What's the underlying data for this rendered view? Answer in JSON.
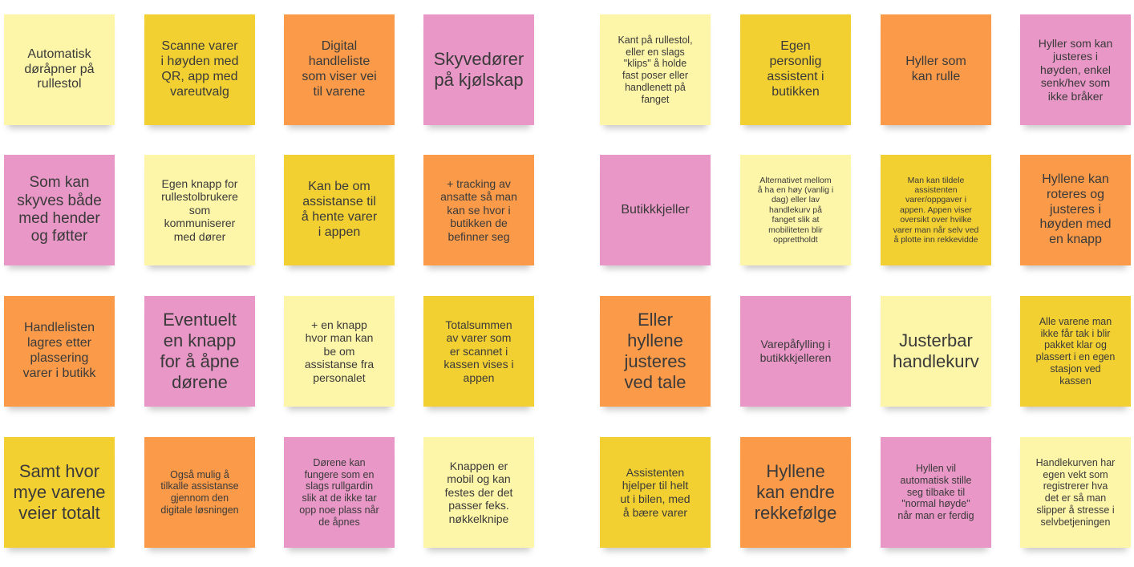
{
  "colors": {
    "light_yellow": "#fdf5a8",
    "yellow": "#f3d032",
    "orange": "#fb9b4a",
    "pink": "#e897c6"
  },
  "notes": [
    {
      "text": "Automatisk\ndøråpner på\nrullestol",
      "color": "light_yellow"
    },
    {
      "text": "Scanne varer\ni høyden med\nQR, app med\nvareutvalg",
      "color": "yellow"
    },
    {
      "text": "Digital\nhandleliste\nsom viser vei\ntil varene",
      "color": "orange"
    },
    {
      "text": "Skyvedører\npå kjølskap",
      "color": "pink"
    },
    {
      "text": "Kant på rullestol,\neller en slags\n\"klips\" å holde\nfast poser eller\nhandlenett på\nfanget",
      "color": "light_yellow"
    },
    {
      "text": "Egen\npersonlig\nassistent i\nbutikken",
      "color": "yellow"
    },
    {
      "text": "Hyller som\nkan rulle",
      "color": "orange"
    },
    {
      "text": "Hyller som kan\njusteres i\nhøyden, enkel\nsenk/hev som\nikke bråker",
      "color": "pink"
    },
    {
      "text": "Som kan\nskyves både\nmed hender\nog føtter",
      "color": "pink"
    },
    {
      "text": "Egen knapp for\nrullestolbrukere\nsom\nkommuniserer\nmed dører",
      "color": "light_yellow"
    },
    {
      "text": "Kan be om\nassistanse til\nå hente varer\ni appen",
      "color": "yellow"
    },
    {
      "text": "+ tracking av\nansatte så man\nkan se hvor i\nbutikken de\nbefinner seg",
      "color": "orange"
    },
    {
      "text": "Butikkkjeller",
      "color": "pink"
    },
    {
      "text": "Alternativet mellom\nå ha en høy (vanlig i\ndag) eller lav\nhandlekurv på\nfanget slik at\nmobiliteten blir\nopprettholdt",
      "color": "light_yellow"
    },
    {
      "text": "Man kan tildele\nassistenten\nvarer/oppgaver i\nappen. Appen viser\noversikt over hvilke\nvarer man når selv ved\nå plotte inn rekkevidde",
      "color": "yellow"
    },
    {
      "text": "Hyllene kan\nroteres og\njusteres i\nhøyden med\nen knapp",
      "color": "orange"
    },
    {
      "text": "Handlelisten\nlagres etter\nplassering\nvarer  i butikk",
      "color": "orange"
    },
    {
      "text": "Eventuelt\nen knapp\nfor å åpne\ndørene",
      "color": "pink"
    },
    {
      "text": "+ en knapp\nhvor man kan\nbe om\nassistanse fra\npersonalet",
      "color": "light_yellow"
    },
    {
      "text": "Totalsummen\nav varer som\ner scannet i\nkassen vises i\nappen",
      "color": "yellow"
    },
    {
      "text": "Eller\nhyllene\njusteres\nved tale",
      "color": "orange"
    },
    {
      "text": "Varepåfylling i\nbutikkkjelleren",
      "color": "pink"
    },
    {
      "text": "Justerbar\nhandlekurv",
      "color": "light_yellow"
    },
    {
      "text": "Alle varene man\nikke får tak i blir\npakket klar og\nplassert i en egen\nstasjon ved\nkassen",
      "color": "yellow"
    },
    {
      "text": "Samt hvor\nmye varene\nveier totalt",
      "color": "yellow"
    },
    {
      "text": "Også mulig å\ntilkalle assistanse\ngjennom den\ndigitale løsningen",
      "color": "orange"
    },
    {
      "text": "Dørene kan\nfungere som en\nslags rullgardin\nslik at de ikke tar\nopp noe plass når\nde åpnes",
      "color": "pink"
    },
    {
      "text": "Knappen er\nmobil og kan\nfestes der det\npasser feks.\nnøkkelknipe",
      "color": "light_yellow"
    },
    {
      "text": "Assistenten\nhjelper til helt\nut i bilen, med\nå bære varer",
      "color": "yellow"
    },
    {
      "text": "Hyllene\nkan endre\nrekkefølge",
      "color": "orange"
    },
    {
      "text": "Hyllen vil\nautomatisk stille\nseg tilbake til\n\"normal høyde\"\nnår man er ferdig",
      "color": "pink"
    },
    {
      "text": "Handlekurven har\negen vekt som\nregistrerer hva\ndet er så man\nslipper å stresse i\nselvbetjeningen",
      "color": "light_yellow"
    }
  ]
}
